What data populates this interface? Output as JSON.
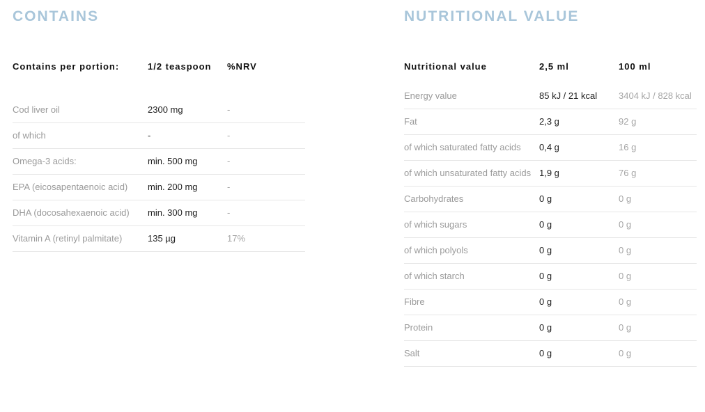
{
  "contains": {
    "title": "CONTAINS",
    "headers": [
      "Contains per portion:",
      "1/2 teaspoon",
      "%NRV"
    ],
    "rows": [
      [
        "Cod liver oil",
        "2300 mg",
        "-"
      ],
      [
        "of which",
        "-",
        "-"
      ],
      [
        "Omega-3 acids:",
        "min. 500 mg",
        "-"
      ],
      [
        "EPA (eicosapentaenoic acid)",
        "min. 200 mg",
        "-"
      ],
      [
        "DHA (docosahexaenoic acid)",
        "min. 300 mg",
        "-"
      ],
      [
        "Vitamin A (retinyl palmitate)",
        "135 µg",
        "17%"
      ]
    ]
  },
  "nutrition": {
    "title": "NUTRITIONAL VALUE",
    "headers": [
      "Nutritional value",
      "2,5 ml",
      "100 ml"
    ],
    "rows": [
      [
        "Energy value",
        "85 kJ / 21 kcal",
        "3404 kJ / 828 kcal"
      ],
      [
        "Fat",
        "2,3 g",
        "92 g"
      ],
      [
        "of which saturated fatty acids",
        "0,4 g",
        "16 g"
      ],
      [
        "of which unsaturated fatty acids",
        "1,9 g",
        "76 g"
      ],
      [
        "Carbohydrates",
        "0 g",
        "0 g"
      ],
      [
        "of which sugars",
        "0 g",
        "0 g"
      ],
      [
        "of which polyols",
        "0 g",
        "0 g"
      ],
      [
        "of which starch",
        "0 g",
        "0 g"
      ],
      [
        "Fibre",
        "0 g",
        "0 g"
      ],
      [
        "Protein",
        "0 g",
        "0 g"
      ],
      [
        "Salt",
        "0 g",
        "0 g"
      ]
    ]
  },
  "colors": {
    "title": "#a9c6da"
  }
}
